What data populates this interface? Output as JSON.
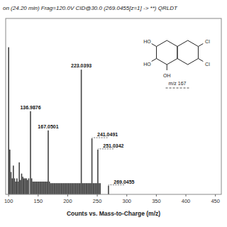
{
  "chart_data": {
    "type": "bar",
    "title": "on (24.20 min) Frag=120.0V CID@30.0 (269.0455[z=1] -> **) QRLDT",
    "xlabel": "Counts vs. Mass-to-Charge (m/z)",
    "x": [
      100,
      102,
      104,
      106,
      108,
      110,
      112,
      114,
      116,
      118,
      120,
      122,
      124,
      126,
      128,
      130,
      132,
      134,
      137,
      139,
      141,
      143,
      145,
      147,
      149,
      151,
      153,
      155,
      157,
      159,
      161,
      163,
      165,
      167,
      169,
      171,
      173,
      175,
      177,
      179,
      181,
      183,
      185,
      187,
      189,
      191,
      193,
      195,
      197,
      199,
      201,
      203,
      205,
      207,
      209,
      211,
      213,
      215,
      217,
      219,
      221,
      223,
      225,
      227,
      229,
      231,
      233,
      235,
      237,
      239,
      241,
      243,
      245,
      247,
      249,
      251,
      253,
      255,
      269
    ],
    "values": [
      0.92,
      0.28,
      0.14,
      0.1,
      0.18,
      0.1,
      0.08,
      0.1,
      0.08,
      0.2,
      0.09,
      0.13,
      0.11,
      0.1,
      0.1,
      0.1,
      0.09,
      0.1,
      0.52,
      0.1,
      0.08,
      0.08,
      0.08,
      0.08,
      0.08,
      0.08,
      0.08,
      0.08,
      0.08,
      0.08,
      0.08,
      0.08,
      0.08,
      0.4,
      0.08,
      0.07,
      0.07,
      0.07,
      0.07,
      0.07,
      0.07,
      0.07,
      0.07,
      0.07,
      0.07,
      0.07,
      0.07,
      0.07,
      0.07,
      0.07,
      0.07,
      0.07,
      0.07,
      0.07,
      0.07,
      0.07,
      0.07,
      0.07,
      0.07,
      0.07,
      0.07,
      0.78,
      0.07,
      0.07,
      0.07,
      0.07,
      0.07,
      0.07,
      0.07,
      0.07,
      0.35,
      0.07,
      0.07,
      0.07,
      0.07,
      0.28,
      0.07,
      0.07,
      0.055
    ],
    "color": "#444444",
    "xlim": [
      95,
      460
    ],
    "ylim": [
      0,
      1.1
    ],
    "xticks": [
      100,
      150,
      200,
      250,
      300,
      350,
      400,
      450
    ],
    "tick_labels": "x",
    "grid": false,
    "annotations": [
      {
        "text": "136.9876",
        "x": 137,
        "y": 0.52
      },
      {
        "text": "167.0501",
        "x": 167,
        "y": 0.4
      },
      {
        "text": "223.0393",
        "x": 223,
        "y": 0.78
      },
      {
        "text": "241.0491",
        "x": 241,
        "y": 0.35
      },
      {
        "text": "251.0342",
        "x": 251,
        "y": 0.28
      },
      {
        "text": "269.0455",
        "x": 269,
        "y": 0.055
      },
      {
        "text": "m/z 167"
      },
      {
        "text": "HO"
      },
      {
        "text": "HO"
      },
      {
        "text": "OH"
      },
      {
        "text": "Cl"
      },
      {
        "text": "Cl"
      }
    ]
  }
}
